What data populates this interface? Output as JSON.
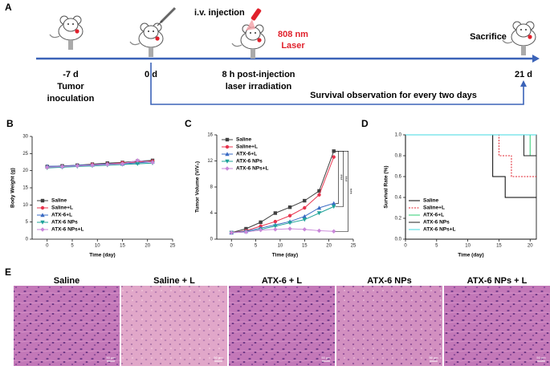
{
  "panel_labels": [
    "A",
    "B",
    "C",
    "D",
    "E"
  ],
  "timeline": {
    "injection": "i.v. injection",
    "laser": [
      "808 nm",
      "Laser"
    ],
    "sacrifice": "Sacrifice",
    "points": [
      "-7 d",
      "0 d",
      "21 d"
    ],
    "inoculation": [
      "Tumor",
      "inoculation"
    ],
    "irradiation": [
      "8 h post-injection",
      "laser irradiation"
    ],
    "observation": "Survival observation for every two days"
  },
  "chart_data": [
    {
      "type": "line",
      "x_label": "Time (day)",
      "y_label": "Body Weight (g)",
      "x": [
        0,
        3,
        6,
        9,
        12,
        15,
        18,
        21
      ],
      "xlim": [
        -3,
        25
      ],
      "xticks": [
        0,
        5,
        10,
        15,
        20,
        25
      ],
      "ylim": [
        0,
        30
      ],
      "yticks": [
        0,
        5,
        10,
        15,
        20,
        25,
        30
      ],
      "legend": "lower left",
      "series": [
        {
          "name": "Saline",
          "color": "#404040",
          "values": [
            21.2,
            21.4,
            21.6,
            21.9,
            22.2,
            22.4,
            22.8,
            23.0
          ]
        },
        {
          "name": "Saline+L",
          "color": "#e8344e",
          "values": [
            21.0,
            21.2,
            21.5,
            21.8,
            22.0,
            22.3,
            22.5,
            22.8
          ]
        },
        {
          "name": "ATX-6+L",
          "color": "#3a6bc4",
          "values": [
            21.3,
            21.3,
            21.6,
            21.7,
            22.0,
            22.0,
            22.3,
            22.6
          ]
        },
        {
          "name": "ATX-6 NPs",
          "color": "#20a39a",
          "values": [
            20.8,
            21.0,
            21.2,
            21.4,
            21.6,
            21.8,
            22.0,
            22.2
          ]
        },
        {
          "name": "ATX-6 NPs+L",
          "color": "#c987d9",
          "values": [
            21.0,
            21.2,
            21.4,
            21.6,
            21.8,
            22.0,
            23.0,
            22.4
          ]
        }
      ]
    },
    {
      "type": "line",
      "x_label": "Time (day)",
      "y_label": "Tumor Volume (V/V₀)",
      "x": [
        0,
        3,
        6,
        9,
        12,
        15,
        18,
        21
      ],
      "xlim": [
        -3,
        25
      ],
      "xticks": [
        0,
        5,
        10,
        15,
        20,
        25
      ],
      "ylim": [
        0,
        16
      ],
      "yticks": [
        0,
        4,
        8,
        12,
        16
      ],
      "legend": "upper left",
      "annotations": [
        "***",
        "***",
        "***"
      ],
      "series": [
        {
          "name": "Saline",
          "color": "#404040",
          "values": [
            1,
            1.6,
            2.6,
            4.0,
            4.9,
            5.9,
            7.4,
            13.5
          ]
        },
        {
          "name": "Saline+L",
          "color": "#e8344e",
          "values": [
            1,
            1.3,
            2.0,
            2.7,
            3.6,
            4.8,
            6.8,
            12.6
          ]
        },
        {
          "name": "ATX-6+L",
          "color": "#3a6bc4",
          "values": [
            1,
            1.2,
            1.7,
            2.2,
            2.7,
            3.5,
            4.8,
            5.5
          ]
        },
        {
          "name": "ATX-6 NPs",
          "color": "#20a39a",
          "values": [
            1,
            1.1,
            1.5,
            2.0,
            2.5,
            3.0,
            4.0,
            5.0
          ]
        },
        {
          "name": "ATX-6 NPs+L",
          "color": "#c987d9",
          "values": [
            1,
            1.1,
            1.4,
            1.5,
            1.6,
            1.5,
            1.3,
            1.2
          ]
        }
      ]
    },
    {
      "type": "step",
      "x_label": "Time (day)",
      "y_label": "Survival Rate (%)",
      "xlim": [
        0,
        21
      ],
      "xticks": [
        0,
        5,
        10,
        15,
        20
      ],
      "ylim": [
        0,
        1
      ],
      "yticks": [
        {
          "value": 0,
          "label": "0.0"
        },
        {
          "value": 0.2,
          "label": "0.2"
        },
        {
          "value": 0.4,
          "label": "0.4"
        },
        {
          "value": 0.6,
          "label": "0.6"
        },
        {
          "value": 0.8,
          "label": "0.8"
        },
        {
          "value": 1,
          "label": "1.0"
        }
      ],
      "legend": "lower left",
      "series": [
        {
          "name": "Saline",
          "color": "#000000",
          "x": [
            0,
            14,
            16,
            21
          ],
          "values": [
            1,
            0.6,
            0.4,
            0.4
          ]
        },
        {
          "name": "Saline+L",
          "color": "#e0212c",
          "dashed": true,
          "x": [
            0,
            15,
            17,
            21
          ],
          "values": [
            1,
            0.8,
            0.6,
            0.6
          ]
        },
        {
          "name": "ATX-6+L",
          "color": "#2ecc71",
          "x": [
            0,
            20,
            21
          ],
          "values": [
            1,
            0.8,
            0.8
          ]
        },
        {
          "name": "ATX-6 NPs",
          "color": "#222222",
          "x": [
            0,
            19,
            21
          ],
          "values": [
            1,
            0.8,
            0.8
          ]
        },
        {
          "name": "ATX-6 NPs+L",
          "color": "#40d8e0",
          "x": [
            0,
            21
          ],
          "values": [
            1,
            1
          ]
        }
      ]
    }
  ],
  "histology": {
    "labels": [
      "Saline",
      "Saline + L",
      "ATX-6 + L",
      "ATX-6 NPs",
      "ATX-6 NPs + L"
    ],
    "scale_bar": "50 μm"
  }
}
